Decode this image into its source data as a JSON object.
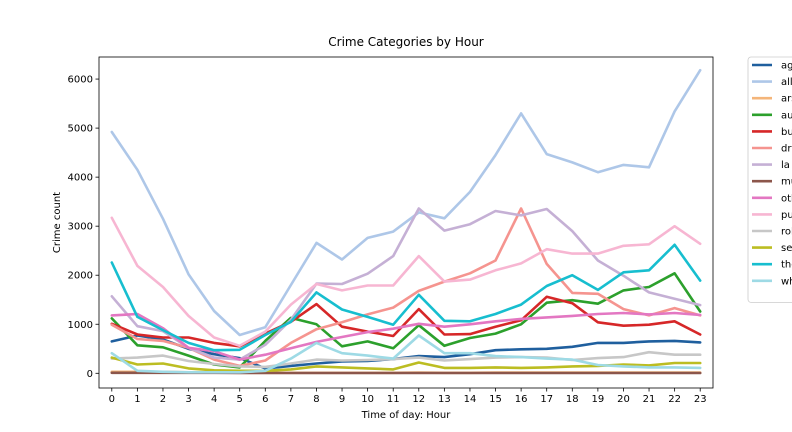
{
  "chart_data": {
    "type": "line",
    "title": "Crime Categories by Hour",
    "xlabel": "Time of day: Hour",
    "ylabel": "Crime count",
    "x": [
      0,
      1,
      2,
      3,
      4,
      5,
      6,
      7,
      8,
      9,
      10,
      11,
      12,
      13,
      14,
      15,
      16,
      17,
      18,
      19,
      20,
      21,
      22,
      23
    ],
    "x_tick_labels": [
      "0",
      "1",
      "2",
      "3",
      "4",
      "5",
      "6",
      "7",
      "8",
      "9",
      "10",
      "11",
      "12",
      "13",
      "14",
      "15",
      "16",
      "17",
      "18",
      "19",
      "20",
      "21",
      "22",
      "23"
    ],
    "ylim": [
      -300,
      6450
    ],
    "y_ticks": [
      0,
      1000,
      2000,
      3000,
      4000,
      5000,
      6000
    ],
    "y_tick_labels": [
      "0",
      "1000",
      "2000",
      "3000",
      "4000",
      "5000",
      "6000"
    ],
    "grid": false,
    "legend_position": "outside right, top",
    "series": [
      {
        "name": "ag",
        "color": "#1f5f9e",
        "values": [
          650,
          770,
          690,
          500,
          390,
          310,
          100,
          150,
          200,
          240,
          250,
          290,
          350,
          330,
          390,
          470,
          490,
          500,
          540,
          620,
          620,
          650,
          660,
          630
        ]
      },
      {
        "name": "all",
        "color": "#aec7e8",
        "values": [
          4920,
          4150,
          3150,
          2020,
          1270,
          780,
          940,
          1800,
          2660,
          2320,
          2760,
          2890,
          3280,
          3160,
          3700,
          4450,
          5300,
          4470,
          4300,
          4100,
          4250,
          4200,
          5340,
          6180
        ]
      },
      {
        "name": "ars",
        "color": "#f4b57a",
        "values": [
          30,
          30,
          30,
          20,
          15,
          10,
          10,
          10,
          10,
          10,
          10,
          10,
          15,
          10,
          10,
          15,
          15,
          15,
          15,
          15,
          15,
          15,
          15,
          15
        ]
      },
      {
        "name": "au",
        "color": "#2ca02c",
        "values": [
          1120,
          570,
          530,
          360,
          180,
          120,
          660,
          1130,
          1000,
          550,
          650,
          510,
          980,
          560,
          720,
          810,
          1000,
          1440,
          1490,
          1420,
          1690,
          1760,
          2040,
          1260
        ]
      },
      {
        "name": "bu",
        "color": "#d62728",
        "values": [
          1010,
          790,
          730,
          730,
          620,
          550,
          810,
          1050,
          1410,
          950,
          850,
          760,
          1310,
          790,
          800,
          950,
          1080,
          1560,
          1430,
          1040,
          970,
          990,
          1060,
          790
        ]
      },
      {
        "name": "dr",
        "color": "#f5948f",
        "values": [
          990,
          700,
          660,
          520,
          280,
          150,
          260,
          620,
          900,
          1040,
          1200,
          1340,
          1680,
          1870,
          2040,
          2300,
          3360,
          2230,
          1640,
          1620,
          1310,
          1180,
          1330,
          1180
        ]
      },
      {
        "name": "la",
        "color": "#c5b0d5",
        "values": [
          1570,
          960,
          860,
          520,
          320,
          280,
          580,
          1090,
          1830,
          1820,
          2030,
          2390,
          3360,
          2910,
          3040,
          3310,
          3220,
          3350,
          2900,
          2300,
          1990,
          1650,
          1520,
          1390
        ]
      },
      {
        "name": "mu",
        "color": "#8c564b",
        "values": [
          10,
          10,
          10,
          10,
          10,
          5,
          5,
          5,
          5,
          5,
          5,
          5,
          5,
          5,
          5,
          5,
          5,
          5,
          5,
          5,
          5,
          5,
          5,
          5
        ]
      },
      {
        "name": "oth",
        "color": "#e377c2",
        "values": [
          1180,
          1210,
          920,
          520,
          450,
          280,
          380,
          510,
          640,
          740,
          840,
          910,
          1010,
          950,
          1000,
          1060,
          1110,
          1140,
          1170,
          1210,
          1230,
          1200,
          1230,
          1190
        ]
      },
      {
        "name": "pu",
        "color": "#f7b6d2",
        "values": [
          3170,
          2190,
          1760,
          1170,
          730,
          560,
          850,
          1400,
          1820,
          1690,
          1790,
          1790,
          2390,
          1870,
          1910,
          2100,
          2240,
          2530,
          2440,
          2440,
          2600,
          2630,
          3000,
          2640
        ]
      },
      {
        "name": "rol",
        "color": "#c7c7c7",
        "values": [
          300,
          320,
          360,
          250,
          190,
          140,
          130,
          200,
          280,
          260,
          270,
          290,
          320,
          260,
          290,
          320,
          330,
          320,
          270,
          310,
          330,
          430,
          380,
          380
        ]
      },
      {
        "name": "se",
        "color": "#bcbd22",
        "values": [
          320,
          180,
          200,
          100,
          60,
          50,
          50,
          80,
          140,
          120,
          100,
          80,
          220,
          110,
          110,
          120,
          110,
          120,
          140,
          150,
          180,
          160,
          210,
          210
        ]
      },
      {
        "name": "the",
        "color": "#17becf",
        "values": [
          2260,
          1150,
          880,
          620,
          470,
          480,
          780,
          1050,
          1650,
          1300,
          1150,
          990,
          1600,
          1070,
          1060,
          1210,
          1400,
          1780,
          2000,
          1700,
          2060,
          2100,
          2620,
          1890
        ]
      },
      {
        "name": "wh",
        "color": "#9edae5",
        "values": [
          410,
          50,
          30,
          20,
          20,
          20,
          50,
          300,
          620,
          410,
          360,
          300,
          770,
          410,
          410,
          350,
          330,
          300,
          280,
          170,
          140,
          120,
          120,
          110
        ]
      }
    ]
  }
}
